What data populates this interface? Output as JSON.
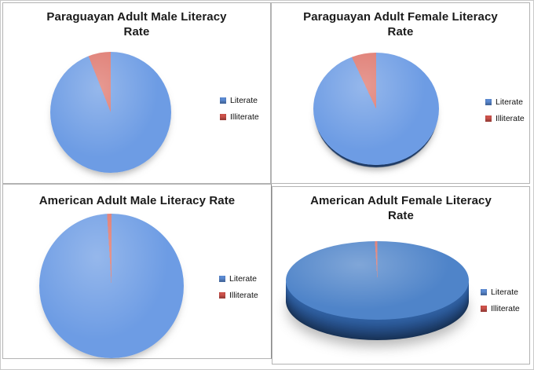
{
  "page": {
    "background": "#ffffff",
    "outer_border": "#c9c9c9",
    "grid_border": "#b3b3b3"
  },
  "colors": {
    "literate_blue": "#6d9ce4",
    "literate_blue_3d": "#4f84c9",
    "illiterate_red": "#dd7369",
    "pie3d_side_dark": "#1a375f",
    "legend_blue": "#5b8ad2",
    "legend_red": "#ce524b",
    "title_color": "#1b1b1b"
  },
  "chart_data": [
    {
      "type": "pie",
      "title": "Paraguayan Adult Male Literacy Rate",
      "title_lines": [
        "Paraguayan Adult Male Literacy",
        "Rate"
      ],
      "categories": [
        "Literate",
        "Illiterate"
      ],
      "values": [
        94,
        6
      ],
      "style": "flat-2d",
      "legend_position": "right",
      "grid": false
    },
    {
      "type": "pie",
      "title": "Paraguayan Adult Female Literacy Rate",
      "title_lines": [
        "Paraguayan Adult Female Literacy",
        "Rate"
      ],
      "categories": [
        "Literate",
        "Illiterate"
      ],
      "values": [
        93,
        7
      ],
      "style": "flat-2d-dark-rim",
      "legend_position": "right",
      "grid": false
    },
    {
      "type": "pie",
      "title": "American Adult Male Literacy Rate",
      "title_lines": [
        "American Adult Male Literacy Rate"
      ],
      "categories": [
        "Literate",
        "Illiterate"
      ],
      "values": [
        99,
        1
      ],
      "style": "flat-2d",
      "legend_position": "right",
      "grid": false
    },
    {
      "type": "pie",
      "title": "American Adult Female Literacy Rate",
      "title_lines": [
        "American Adult Female Literacy",
        "Rate"
      ],
      "categories": [
        "Literate",
        "Illiterate"
      ],
      "values": [
        99,
        1
      ],
      "style": "3d-extruded",
      "legend_position": "right",
      "grid": false
    }
  ]
}
